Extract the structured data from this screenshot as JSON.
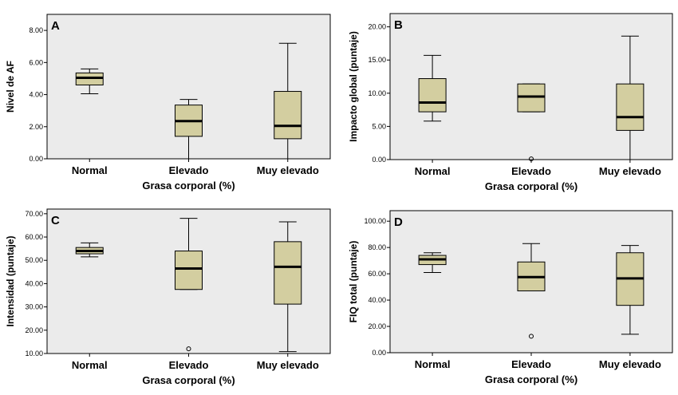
{
  "chart_data": [
    {
      "type": "boxplot",
      "panel_letter": "A",
      "xlabel": "Grasa corporal (%)",
      "ylabel": "Nivel de AF",
      "ylim": [
        0,
        9
      ],
      "yticks": [
        0,
        2,
        4,
        6,
        8
      ],
      "ytick_labels": [
        "0.00",
        "2.00",
        "4.00",
        "6.00",
        "8.00"
      ],
      "categories": [
        "Normal",
        "Elevado",
        "Muy elevado"
      ],
      "boxes": [
        {
          "whisker_low": 4.05,
          "q1": 4.6,
          "median": 5.05,
          "q3": 5.35,
          "whisker_high": 5.6,
          "outliers": []
        },
        {
          "whisker_low": 0.0,
          "q1": 1.4,
          "median": 2.35,
          "q3": 3.35,
          "whisker_high": 3.7,
          "outliers": []
        },
        {
          "whisker_low": 0.0,
          "q1": 1.25,
          "median": 2.05,
          "q3": 4.2,
          "whisker_high": 7.2,
          "outliers": []
        }
      ]
    },
    {
      "type": "boxplot",
      "panel_letter": "B",
      "xlabel": "Grasa corporal (%)",
      "ylabel": "Impacto global (puntaje)",
      "ylim": [
        0,
        22
      ],
      "yticks": [
        0,
        5,
        10,
        15,
        20
      ],
      "ytick_labels": [
        "0.00",
        "5.00",
        "10.00",
        "15.00",
        "20.00"
      ],
      "categories": [
        "Normal",
        "Elevado",
        "Muy elevado"
      ],
      "boxes": [
        {
          "whisker_low": 5.8,
          "q1": 7.2,
          "median": 8.6,
          "q3": 12.2,
          "whisker_high": 15.7,
          "outliers": []
        },
        {
          "whisker_low": 7.2,
          "q1": 7.2,
          "median": 9.5,
          "q3": 11.4,
          "whisker_high": 11.4,
          "outliers": [
            0.1
          ]
        },
        {
          "whisker_low": 0.0,
          "q1": 4.4,
          "median": 6.4,
          "q3": 11.4,
          "whisker_high": 18.6,
          "outliers": []
        }
      ]
    },
    {
      "type": "boxplot",
      "panel_letter": "C",
      "xlabel": "Grasa corporal (%)",
      "ylabel": "Intensidad (puntaje)",
      "ylim": [
        10,
        72
      ],
      "yticks": [
        10,
        20,
        30,
        40,
        50,
        60,
        70
      ],
      "ytick_labels": [
        "10.00",
        "20.00",
        "30.00",
        "40.00",
        "50.00",
        "60.00",
        "70.00"
      ],
      "categories": [
        "Normal",
        "Elevado",
        "Muy elevado"
      ],
      "boxes": [
        {
          "whisker_low": 51.5,
          "q1": 52.8,
          "median": 54.0,
          "q3": 55.5,
          "whisker_high": 57.5,
          "outliers": []
        },
        {
          "whisker_low": 37.5,
          "q1": 37.5,
          "median": 46.5,
          "q3": 54.0,
          "whisker_high": 68.0,
          "outliers": [
            12.0
          ]
        },
        {
          "whisker_low": 10.8,
          "q1": 31.2,
          "median": 47.2,
          "q3": 58.0,
          "whisker_high": 66.5,
          "outliers": []
        }
      ]
    },
    {
      "type": "boxplot",
      "panel_letter": "D",
      "xlabel": "Grasa corporal (%)",
      "ylabel": "FIQ total (puntaje)",
      "ylim": [
        0,
        108
      ],
      "yticks": [
        0,
        20,
        40,
        60,
        80,
        100
      ],
      "ytick_labels": [
        "0.00",
        "20.00",
        "40.00",
        "60.00",
        "80.00",
        "100.00"
      ],
      "categories": [
        "Normal",
        "Elevado",
        "Muy elevado"
      ],
      "boxes": [
        {
          "whisker_low": 61.0,
          "q1": 67.0,
          "median": 71.0,
          "q3": 74.0,
          "whisker_high": 76.0,
          "outliers": []
        },
        {
          "whisker_low": 47.0,
          "q1": 47.0,
          "median": 57.5,
          "q3": 69.0,
          "whisker_high": 83.0,
          "outliers": [
            12.5
          ]
        },
        {
          "whisker_low": 14.0,
          "q1": 36.0,
          "median": 56.5,
          "q3": 76.0,
          "whisker_high": 81.5,
          "outliers": []
        }
      ]
    }
  ],
  "colors": {
    "plot_background": "#ebebeb",
    "box_fill": "#d3cea0",
    "stroke": "#000000"
  }
}
